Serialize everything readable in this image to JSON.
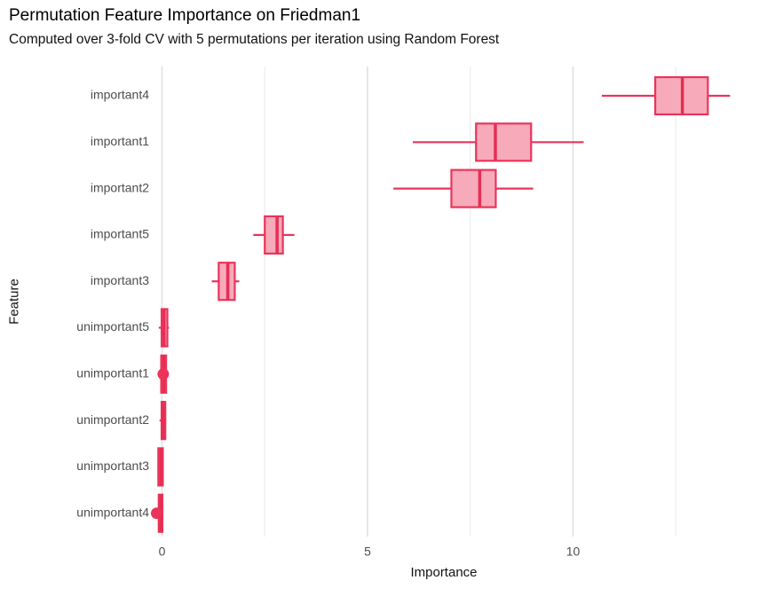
{
  "chart_data": {
    "type": "boxplot",
    "orientation": "horizontal",
    "title": "Permutation Feature Importance on Friedman1",
    "subtitle": "Computed over 3-fold CV with 5 permutations per iteration using Random Forest",
    "xlabel": "Importance",
    "ylabel": "Feature",
    "xlim": [
      -0.8,
      14.6
    ],
    "x_major_ticks": [
      0,
      5,
      10
    ],
    "x_minor_gridlines": [
      2.5,
      7.5,
      12.5
    ],
    "grid": "vertical-only",
    "legend": "none",
    "categories": [
      "important4",
      "important1",
      "important2",
      "important5",
      "important3",
      "unimportant5",
      "unimportant1",
      "unimportant2",
      "unimportant3",
      "unimportant4"
    ],
    "series": [
      {
        "feature": "important4",
        "whisker_low": 10.7,
        "q1": 12.0,
        "median": 12.66,
        "q3": 13.28,
        "whisker_high": 13.82,
        "outliers": []
      },
      {
        "feature": "important1",
        "whisker_low": 6.1,
        "q1": 7.64,
        "median": 8.11,
        "q3": 8.98,
        "whisker_high": 10.26,
        "outliers": []
      },
      {
        "feature": "important2",
        "whisker_low": 5.63,
        "q1": 7.04,
        "median": 7.73,
        "q3": 8.12,
        "whisker_high": 9.03,
        "outliers": []
      },
      {
        "feature": "important5",
        "whisker_low": 2.22,
        "q1": 2.5,
        "median": 2.8,
        "q3": 2.94,
        "whisker_high": 3.22,
        "outliers": []
      },
      {
        "feature": "important3",
        "whisker_low": 1.21,
        "q1": 1.38,
        "median": 1.6,
        "q3": 1.77,
        "whisker_high": 1.88,
        "outliers": []
      },
      {
        "feature": "unimportant5",
        "whisker_low": -0.08,
        "q1": -0.01,
        "median": 0.05,
        "q3": 0.13,
        "whisker_high": 0.17,
        "outliers": []
      },
      {
        "feature": "unimportant1",
        "whisker_low": -0.05,
        "q1": -0.02,
        "median": 0.04,
        "q3": 0.1,
        "whisker_high": 0.13,
        "outliers": [
          0.03
        ]
      },
      {
        "feature": "unimportant2",
        "whisker_low": -0.06,
        "q1": -0.01,
        "median": 0.03,
        "q3": 0.08,
        "whisker_high": 0.1,
        "outliers": []
      },
      {
        "feature": "unimportant3",
        "whisker_low": -0.11,
        "q1": -0.09,
        "median": -0.03,
        "q3": 0.02,
        "whisker_high": 0.03,
        "outliers": []
      },
      {
        "feature": "unimportant4",
        "whisker_low": -0.1,
        "q1": -0.08,
        "median": -0.03,
        "q3": 0.01,
        "whisker_high": 0.02,
        "outliers": [
          -0.13
        ]
      }
    ],
    "colors": {
      "box_border": "#ea345b",
      "box_fill": "#f7aaba",
      "median": "#e62e53",
      "outlier": "#ea345b",
      "grid_major": "#e2e2e2",
      "grid_minor": "#f0f0f0",
      "axis_text": "#4d4d4d",
      "title_text": "#000000"
    }
  }
}
